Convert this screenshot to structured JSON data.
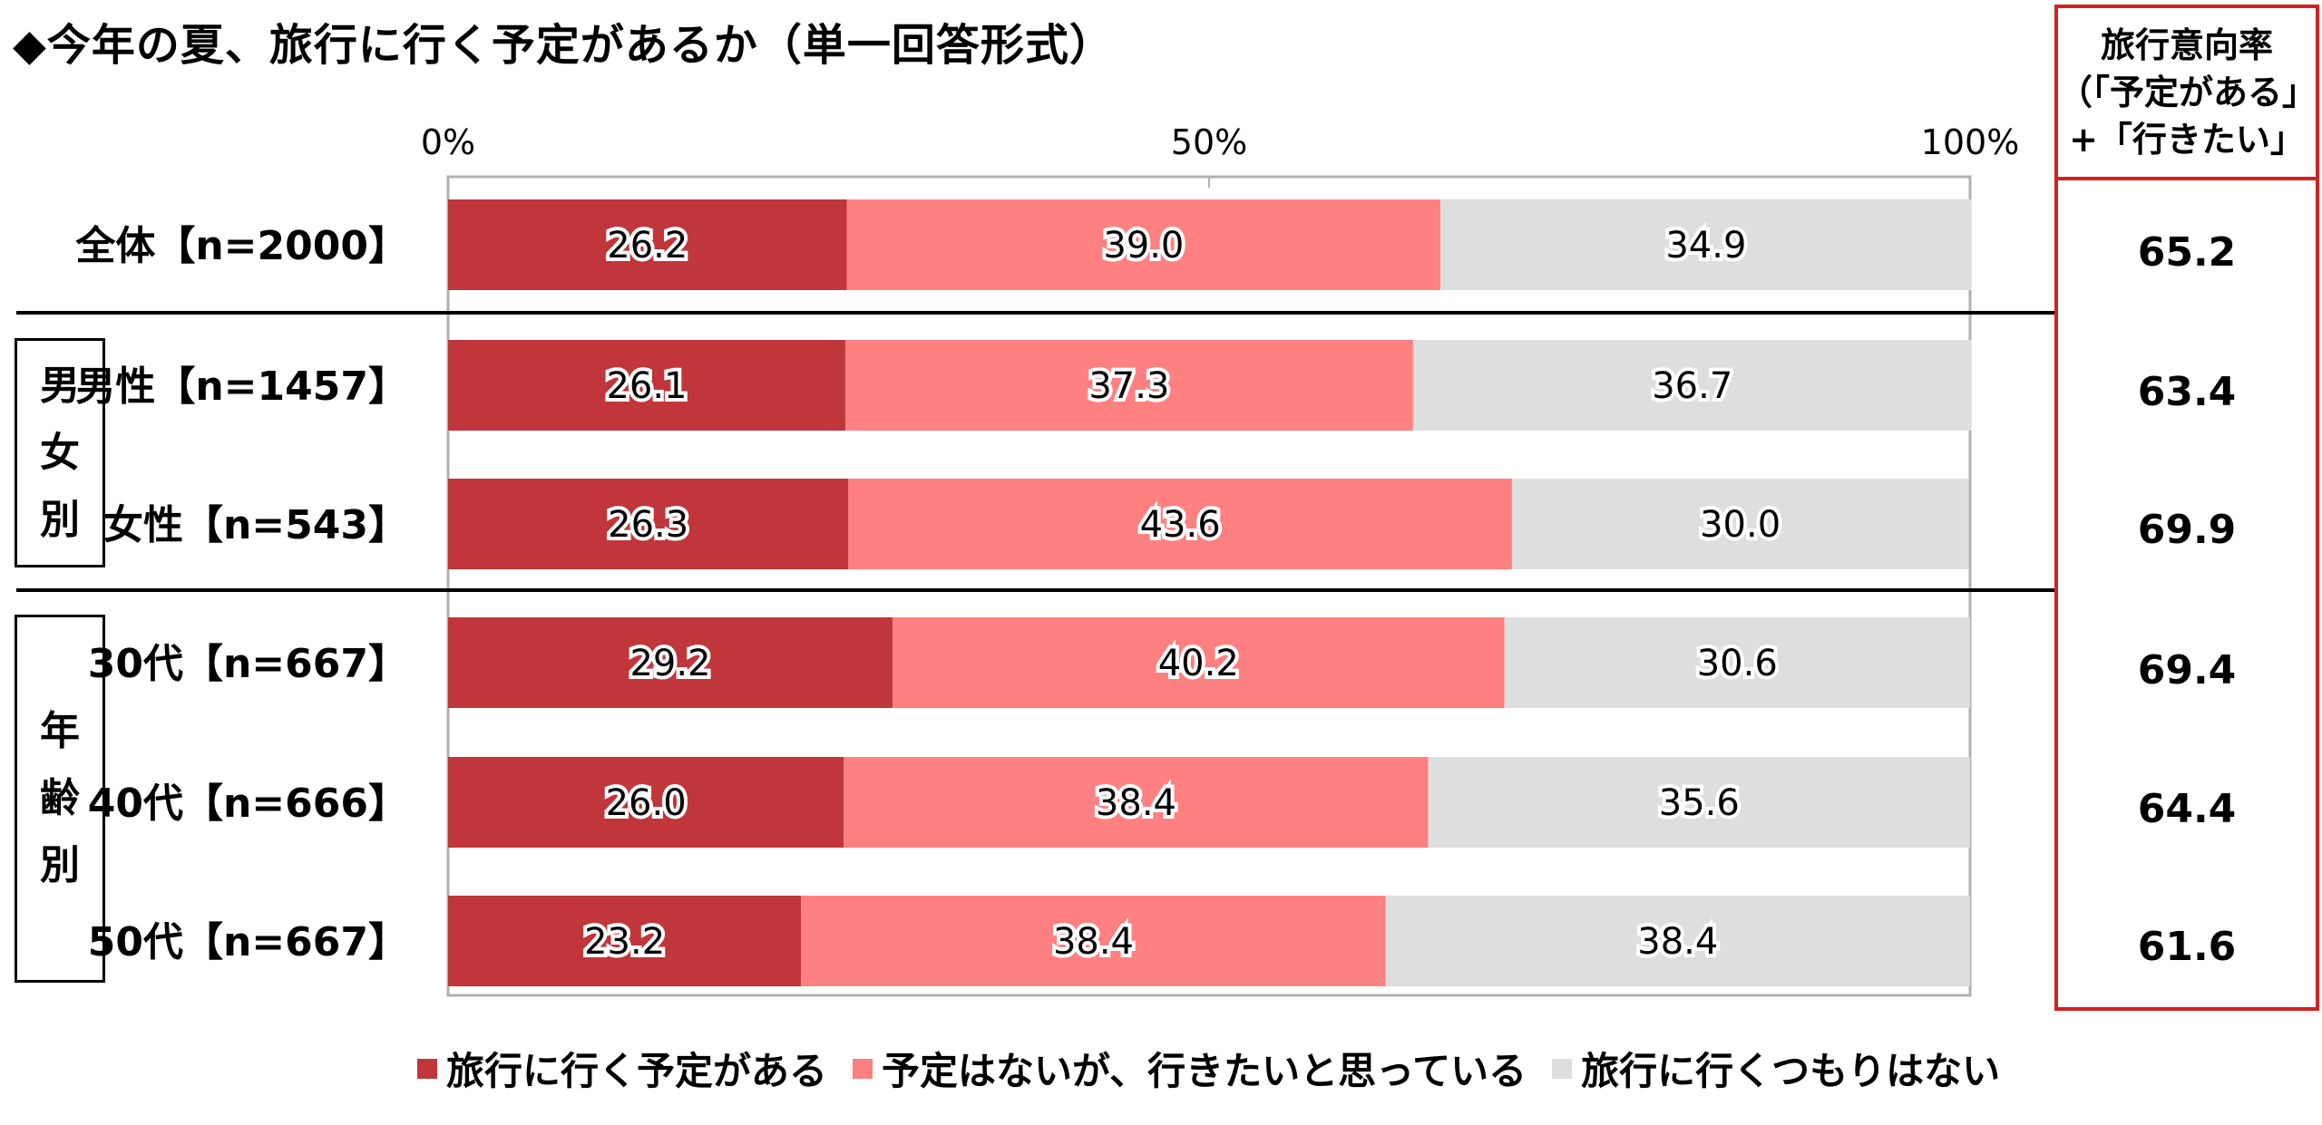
{
  "title": "◆今年の夏、旅行に行く予定があるか（単一回答形式）",
  "colors": {
    "plan": "#c0363a",
    "want": "#ff8080",
    "none": "#dedede",
    "accent": "#d42020"
  },
  "chart_data": {
    "type": "bar",
    "orientation": "horizontal",
    "stacked": true,
    "x_ticks": [
      "0%",
      "50%",
      "100%"
    ],
    "xlim": [
      0,
      100
    ],
    "legend_position": "bottom",
    "categories": [
      "全体【n=2000】",
      "男性【n=1457】",
      "女性【n=543】",
      "30代【n=667】",
      "40代【n=666】",
      "50代【n=667】"
    ],
    "series": [
      {
        "name": "旅行に行く予定がある",
        "values": [
          26.2,
          26.1,
          26.3,
          29.2,
          26.0,
          23.2
        ]
      },
      {
        "name": "予定はないが、行きたいと思っている",
        "values": [
          39.0,
          37.3,
          43.6,
          40.2,
          38.4,
          38.4
        ]
      },
      {
        "name": "旅行に行くつもりはない",
        "values": [
          34.9,
          36.7,
          30.0,
          30.6,
          35.6,
          38.4
        ]
      }
    ],
    "labels": [
      [
        "26.2",
        "39.0",
        "34.9"
      ],
      [
        "26.1",
        "37.3",
        "36.7"
      ],
      [
        "26.3",
        "43.6",
        "30.0"
      ],
      [
        "29.2",
        "40.2",
        "30.6"
      ],
      [
        "26.0",
        "38.4",
        "35.6"
      ],
      [
        "23.2",
        "38.4",
        "38.4"
      ]
    ]
  },
  "groups": [
    {
      "chars": [
        "男",
        "女",
        "別"
      ]
    },
    {
      "chars": [
        "年",
        "齢",
        "別"
      ]
    }
  ],
  "side_panel": {
    "header_lines": [
      "旅行意向率",
      "（「予定がある」",
      "+「行きたい」"
    ],
    "values": [
      "65.2",
      "63.4",
      "69.9",
      "69.4",
      "64.4",
      "61.6"
    ]
  }
}
